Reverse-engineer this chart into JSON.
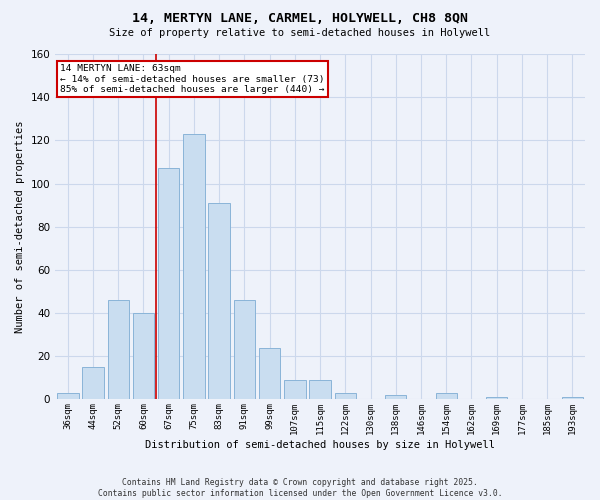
{
  "title1": "14, MERTYN LANE, CARMEL, HOLYWELL, CH8 8QN",
  "title2": "Size of property relative to semi-detached houses in Holywell",
  "xlabel": "Distribution of semi-detached houses by size in Holywell",
  "ylabel": "Number of semi-detached properties",
  "categories": [
    "36sqm",
    "44sqm",
    "52sqm",
    "60sqm",
    "67sqm",
    "75sqm",
    "83sqm",
    "91sqm",
    "99sqm",
    "107sqm",
    "115sqm",
    "122sqm",
    "130sqm",
    "138sqm",
    "146sqm",
    "154sqm",
    "162sqm",
    "169sqm",
    "177sqm",
    "185sqm",
    "193sqm"
  ],
  "values": [
    3,
    15,
    46,
    40,
    107,
    123,
    91,
    46,
    24,
    9,
    9,
    3,
    0,
    2,
    0,
    3,
    0,
    1,
    0,
    0,
    1
  ],
  "bar_color": "#c9ddf0",
  "bar_edge_color": "#8ab4d8",
  "vline_x_index": 3,
  "vline_color": "#cc0000",
  "annotation_title": "14 MERTYN LANE: 63sqm",
  "annotation_line1": "← 14% of semi-detached houses are smaller (73)",
  "annotation_line2": "85% of semi-detached houses are larger (440) →",
  "annotation_box_color": "#cc0000",
  "ylim": [
    0,
    160
  ],
  "yticks": [
    0,
    20,
    40,
    60,
    80,
    100,
    120,
    140,
    160
  ],
  "footnote1": "Contains HM Land Registry data © Crown copyright and database right 2025.",
  "footnote2": "Contains public sector information licensed under the Open Government Licence v3.0.",
  "bg_color": "#eef2fa",
  "grid_color": "#ccd8ec"
}
